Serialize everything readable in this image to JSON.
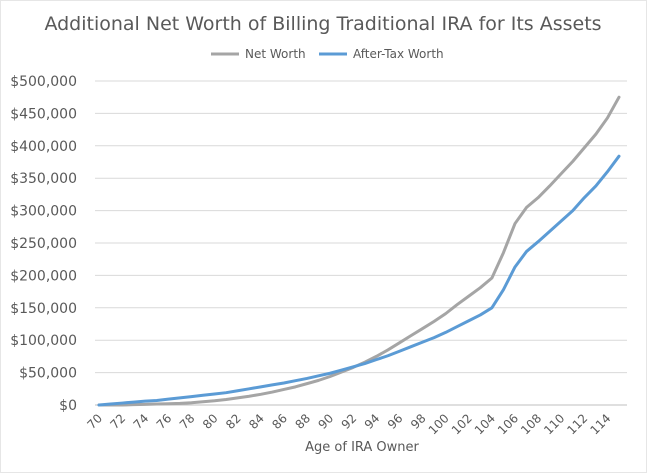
{
  "chart_data": {
    "type": "line",
    "title": "Additional Net Worth of Billing Traditional IRA for Its Assets",
    "xlabel": "Age of IRA Owner",
    "ylabel": "",
    "ylim": [
      0,
      500000
    ],
    "grid": true,
    "legend_position": "top-center",
    "x": [
      70,
      71,
      72,
      73,
      74,
      75,
      76,
      77,
      78,
      79,
      80,
      81,
      82,
      83,
      84,
      85,
      86,
      87,
      88,
      89,
      90,
      91,
      92,
      93,
      94,
      95,
      96,
      97,
      98,
      99,
      100,
      101,
      102,
      103,
      104,
      105,
      106,
      107,
      108,
      109,
      110,
      111,
      112,
      113,
      114,
      115
    ],
    "x_tick_labels": [
      "70",
      "72",
      "74",
      "76",
      "78",
      "80",
      "82",
      "84",
      "86",
      "88",
      "90",
      "92",
      "94",
      "96",
      "98",
      "100",
      "102",
      "104",
      "106",
      "108",
      "110",
      "112",
      "114"
    ],
    "y_tick_labels": [
      "$0",
      "$50,000",
      "$100,000",
      "$150,000",
      "$200,000",
      "$250,000",
      "$300,000",
      "$350,000",
      "$400,000",
      "$450,000",
      "$500,000"
    ],
    "series": [
      {
        "name": "Net Worth",
        "color": "#a5a5a5",
        "values": [
          0,
          0,
          0,
          500,
          1000,
          1500,
          2000,
          2500,
          3500,
          5000,
          6500,
          8500,
          11000,
          13500,
          16500,
          20000,
          24000,
          28000,
          33000,
          38000,
          44000,
          51000,
          58000,
          66000,
          75000,
          85000,
          96000,
          107000,
          118000,
          129000,
          141000,
          155000,
          168000,
          181000,
          196000,
          235000,
          280000,
          305000,
          320000,
          338000,
          357000,
          376000,
          397000,
          418000,
          443000,
          475000
        ]
      },
      {
        "name": "After-Tax Worth",
        "color": "#5b9bd5",
        "values": [
          0,
          1500,
          3000,
          4500,
          6000,
          7000,
          9000,
          11000,
          13000,
          15000,
          17000,
          19000,
          22000,
          25000,
          28000,
          31000,
          34000,
          37500,
          41000,
          45000,
          49000,
          54000,
          59000,
          64000,
          70000,
          76000,
          83000,
          90000,
          97000,
          104000,
          112000,
          121000,
          130000,
          139000,
          150000,
          178000,
          213000,
          237000,
          252000,
          268000,
          284000,
          300000,
          320000,
          338000,
          360000,
          384000
        ]
      }
    ]
  }
}
